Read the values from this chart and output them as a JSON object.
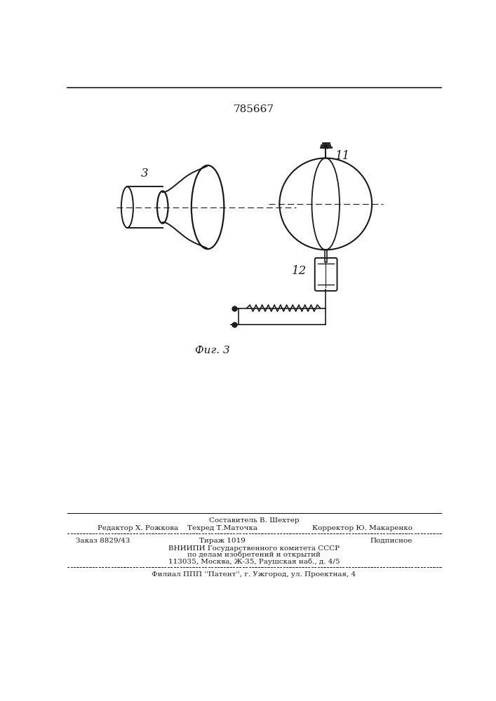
{
  "patent_number": "785667",
  "fig_label": "Фиг. 3",
  "label_3": "3",
  "label_11": "11",
  "label_12": "12",
  "bottom_text_line1": "Составитель В. Шехтер",
  "bottom_text_line2_left": "Редактор Х. Рожкова",
  "bottom_text_line2_mid": "Техред Т.Маточка",
  "bottom_text_line2_right": "Корректор Ю. Макаренко",
  "bottom_text_line3_left": "Заказ 8829/43",
  "bottom_text_line3_mid": "Тираж 1019",
  "bottom_text_line3_right": "Подписное",
  "bottom_text_line4": "ВНИИПИ Государственного комитета СССР",
  "bottom_text_line5": "по делам изобретений и открытий",
  "bottom_text_line6": "113035, Москва, Ж-35, Раушская наб., д. 4/5",
  "bottom_text_last": "Филиал ППП ''Патент'', г. Ужгород, ул. Проектная, 4",
  "bg_color": "#ffffff",
  "line_color": "#1a1a1a",
  "text_color": "#1a1a1a"
}
